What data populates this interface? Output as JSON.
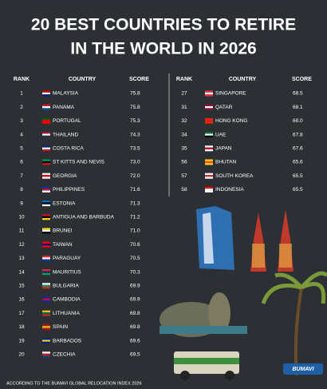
{
  "header": {
    "title_lines": [
      "20 BEST COUNTRIES TO RETIRE",
      "IN THE WORLD IN 2026"
    ]
  },
  "table_left": {
    "columns": [
      "RANK",
      "COUNTRY",
      "SCORE"
    ],
    "rows": [
      [
        1,
        "MALAYSIA",
        "75.8"
      ],
      [
        2,
        "PANAMA",
        "75.8"
      ],
      [
        3,
        "PORTUGAL",
        "75.3"
      ],
      [
        4,
        "THAILAND",
        "74.3"
      ],
      [
        5,
        "COSTA RICA",
        "73.5"
      ],
      [
        6,
        "ST KITTS AND NEVIS",
        "73.0"
      ],
      [
        7,
        "GEORGIA",
        "72.0"
      ],
      [
        8,
        "PHILIPPINES",
        "71.6"
      ],
      [
        9,
        "ESTONIA",
        "71.3"
      ],
      [
        10,
        "ANTIGUA AND BARBUDA",
        "71.2"
      ],
      [
        11,
        "BRUNEI",
        "71.0"
      ],
      [
        12,
        "TAIWAN",
        "70.6"
      ],
      [
        13,
        "PARAGUAY",
        "70.5"
      ],
      [
        14,
        "MAURITIUS",
        "70.3"
      ],
      [
        15,
        "BULGARIA",
        "69.9"
      ],
      [
        16,
        "CAMBODIA",
        "69.9"
      ],
      [
        17,
        "LITHUANIA",
        "69.8"
      ],
      [
        18,
        "SPAIN",
        "69.8"
      ],
      [
        19,
        "BARBADOS",
        "69.6"
      ],
      [
        20,
        "CZECHIA",
        "69.5"
      ]
    ]
  },
  "table_right": {
    "columns": [
      "RANK",
      "COUNTRY",
      "SCORE"
    ],
    "rows": [
      [
        27,
        "SINGAPORE",
        "68.5"
      ],
      [
        31,
        "QATAR",
        "68.1"
      ],
      [
        32,
        "HONG KONG",
        "68.0"
      ],
      [
        34,
        "UAE",
        "67.8"
      ],
      [
        35,
        "JAPAN",
        "67.6"
      ],
      [
        56,
        "BHUTAN",
        "65.6"
      ],
      [
        57,
        "SOUTH KOREA",
        "65.5"
      ],
      [
        58,
        "INDONESIA",
        "65.5"
      ]
    ]
  },
  "footer": {
    "source": "ACCORDING TO THE BUMAVI GLOBAL RELOCATION INDEX 2026",
    "logo": "BUMAVI"
  }
}
